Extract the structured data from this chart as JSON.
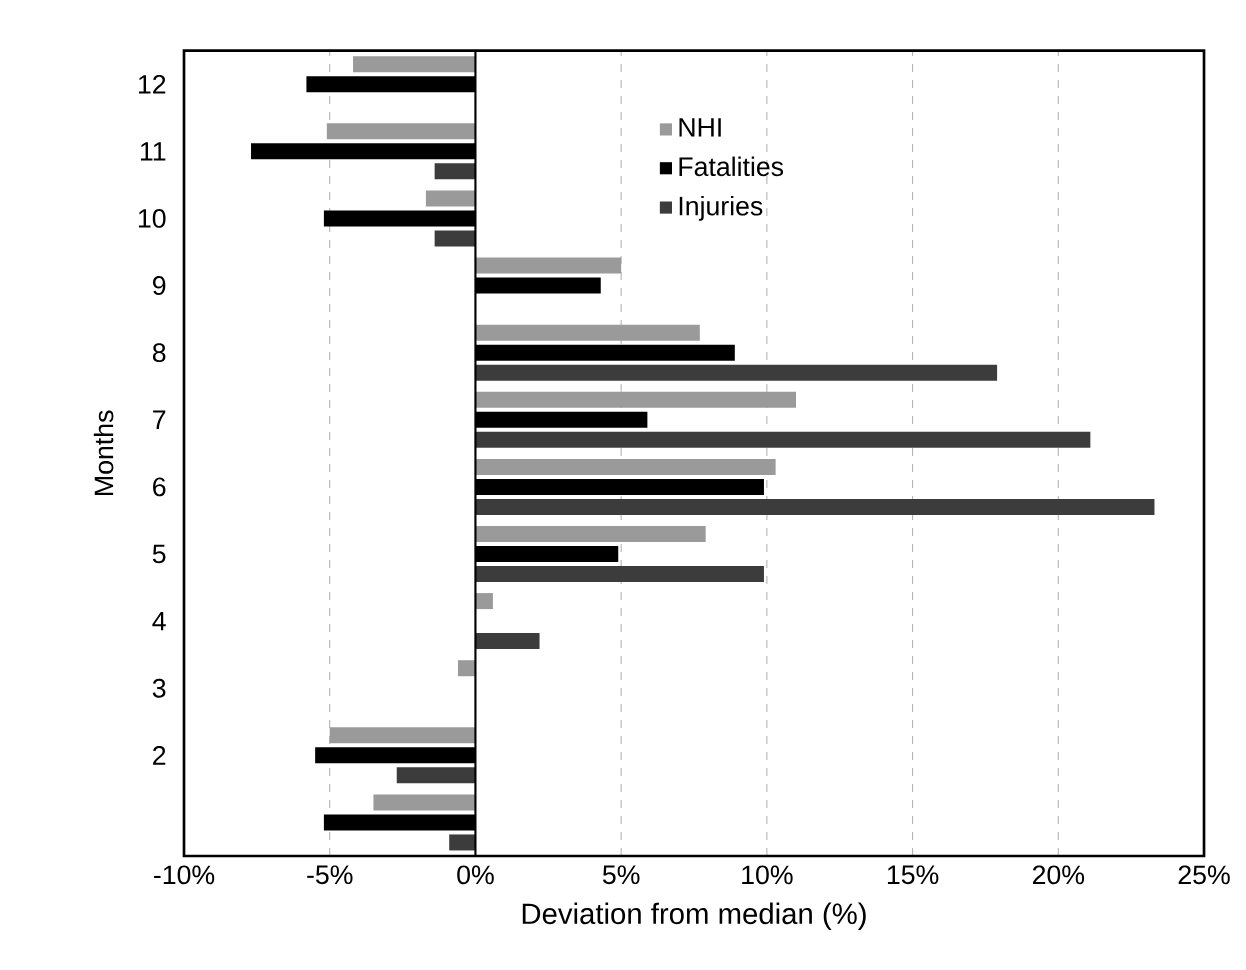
{
  "chart_data": {
    "type": "bar",
    "orientation": "horizontal",
    "xlabel": "Deviation from median (%)",
    "ylabel": "Months",
    "categories": [
      "12",
      "11",
      "10",
      "9",
      "8",
      "7",
      "6",
      "5",
      "4",
      "3",
      "2",
      null
    ],
    "series": [
      {
        "name": "NHI",
        "color": "#9a9a9a",
        "values": [
          -4.2,
          -5.1,
          -1.7,
          5.0,
          7.7,
          11.0,
          10.3,
          7.9,
          0.6,
          -0.6,
          -5.0,
          -3.5
        ]
      },
      {
        "name": "Fatalities",
        "color": "#000000",
        "values": [
          -5.8,
          -7.7,
          -5.2,
          4.3,
          8.9,
          5.9,
          9.9,
          4.9,
          null,
          null,
          -5.5,
          -5.2
        ]
      },
      {
        "name": "Injuries",
        "color": "#3c3c3c",
        "values": [
          null,
          -1.4,
          -1.4,
          null,
          17.9,
          21.1,
          23.3,
          9.9,
          2.2,
          null,
          -2.7,
          -0.9
        ]
      }
    ],
    "xlim": [
      -10,
      25
    ],
    "xticks": [
      {
        "value": -10,
        "label": "-10%"
      },
      {
        "value": -5,
        "label": "-5%"
      },
      {
        "value": 0,
        "label": "0%"
      },
      {
        "value": 5,
        "label": "5%"
      },
      {
        "value": 10,
        "label": "10%"
      },
      {
        "value": 15,
        "label": "15%"
      },
      {
        "value": 20,
        "label": "20%"
      },
      {
        "value": 25,
        "label": "25%"
      }
    ],
    "grid": "x",
    "legend": "top"
  }
}
